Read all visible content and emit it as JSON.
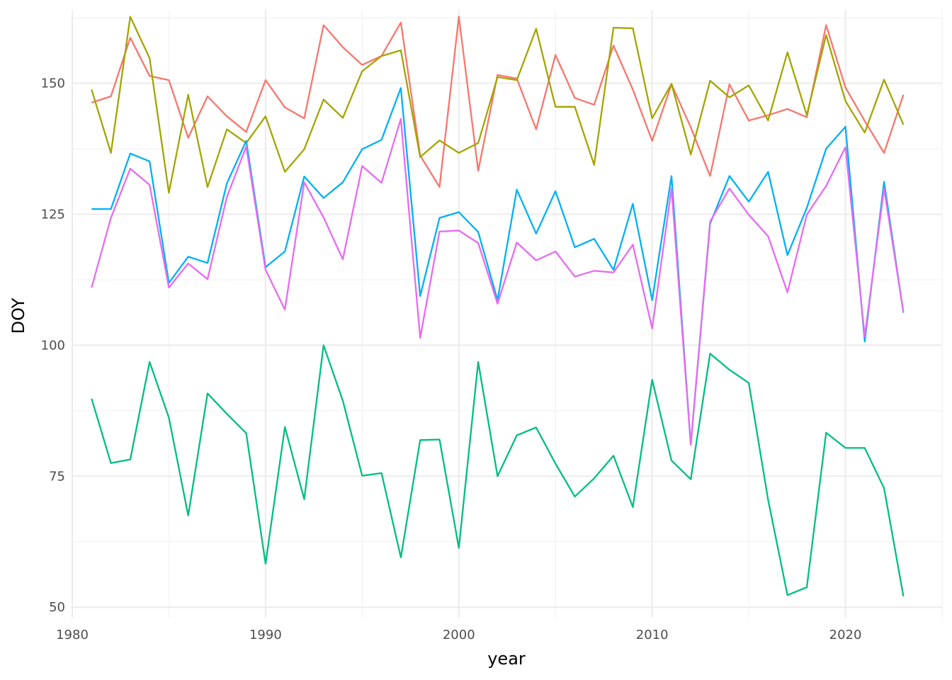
{
  "chart_data": {
    "type": "line",
    "xlabel": "year",
    "ylabel": "DOY",
    "xlim": [
      1980,
      2025
    ],
    "ylim": [
      48,
      164
    ],
    "x_ticks": [
      1980,
      1990,
      2000,
      2010,
      2020
    ],
    "y_ticks": [
      50,
      75,
      100,
      125,
      150
    ],
    "grid": true,
    "legend": "none",
    "x": [
      1981,
      1982,
      1983,
      1984,
      1985,
      1986,
      1987,
      1988,
      1989,
      1990,
      1991,
      1992,
      1993,
      1994,
      1995,
      1996,
      1997,
      1998,
      1999,
      2000,
      2001,
      2002,
      2003,
      2004,
      2005,
      2006,
      2007,
      2008,
      2009,
      2010,
      2011,
      2012,
      2013,
      2014,
      2015,
      2016,
      2017,
      2018,
      2019,
      2020,
      2021,
      2022,
      2023
    ],
    "series": [
      {
        "color": "#F8766D",
        "values": [
          146.3,
          147.5,
          158.7,
          151.4,
          150.6,
          139.6,
          147.5,
          143.7,
          140.7,
          150.6,
          145.4,
          143.3,
          161.1,
          156.9,
          153.5,
          155.2,
          161.6,
          136.2,
          130.2,
          162.7,
          133.3,
          151.6,
          150.9,
          141.2,
          155.4,
          147.2,
          145.9,
          157.2,
          148.8,
          139,
          149.8,
          141.6,
          132.3,
          149.8,
          142.9,
          143.9,
          145.1,
          143.5,
          161.1,
          149.2,
          142.8,
          136.7,
          147.8
        ]
      },
      {
        "color": "#A3A500",
        "values": [
          148.8,
          136.7,
          162.7,
          154.8,
          129.1,
          147.8,
          130.2,
          141.2,
          138.6,
          143.7,
          133.1,
          137.4,
          146.9,
          143.4,
          152.3,
          155.2,
          156.3,
          135.9,
          139.1,
          136.7,
          138.6,
          151.2,
          150.6,
          160.4,
          145.5,
          145.5,
          134.4,
          160.6,
          160.5,
          143.3,
          149.9,
          136.4,
          150.5,
          147.3,
          149.6,
          142.9,
          155.9,
          143.9,
          159.2,
          146.6,
          140.6,
          150.7,
          142.1
        ]
      },
      {
        "color": "#00BF7D",
        "values": [
          89.8,
          77.5,
          78.2,
          96.8,
          86.2,
          67.5,
          90.8,
          86.9,
          83.2,
          58.3,
          84.4,
          70.6,
          100,
          89.4,
          75.1,
          75.6,
          59.5,
          81.9,
          82,
          61.3,
          96.8,
          75,
          82.8,
          84.3,
          77.4,
          71.1,
          74.6,
          78.9,
          69.1,
          93.4,
          78,
          74.4,
          98.4,
          95.3,
          92.8,
          70.5,
          52.3,
          53.8,
          83.3,
          80.4,
          80.4,
          72.7,
          52.1
        ]
      },
      {
        "color": "#00B0F6",
        "values": [
          126,
          126,
          136.6,
          135.1,
          111.9,
          116.9,
          115.7,
          130.9,
          139,
          114.9,
          117.9,
          132.2,
          128.1,
          131.1,
          137.4,
          139.2,
          149.1,
          109.4,
          124.3,
          125.4,
          121.6,
          108.6,
          129.7,
          121.3,
          129.4,
          118.7,
          120.3,
          114.4,
          127,
          108.6,
          132.3,
          81,
          123.2,
          132.3,
          127.4,
          133.1,
          117.2,
          126.2,
          137.5,
          141.7,
          100.7,
          131.2,
          106.2
        ]
      },
      {
        "color": "#E76BF3",
        "values": [
          111,
          124.3,
          133.7,
          130.6,
          111,
          115.6,
          112.6,
          128.3,
          137.9,
          114.4,
          106.8,
          131.1,
          124.4,
          116.4,
          134.2,
          131,
          143.2,
          101.4,
          121.7,
          121.9,
          119.5,
          107.9,
          119.6,
          116.2,
          117.9,
          113.1,
          114.2,
          113.9,
          119.2,
          103.2,
          129.9,
          81,
          123.6,
          129.9,
          124.9,
          120.8,
          110.1,
          124.9,
          130.4,
          137.8,
          101.7,
          129.9,
          106.3
        ]
      }
    ]
  }
}
